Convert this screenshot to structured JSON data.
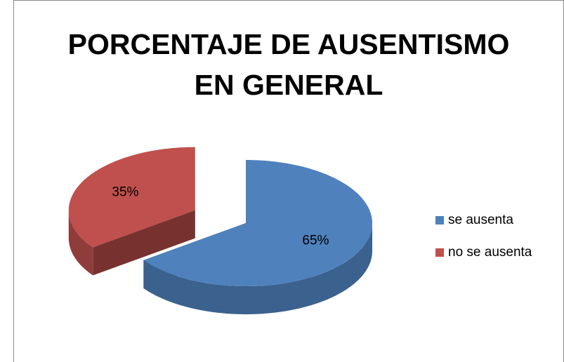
{
  "chart_data": {
    "type": "pie",
    "title": "PORCENTAJE DE AUSENTISMO EN GENERAL",
    "categories": [
      "se ausenta",
      "no se ausenta"
    ],
    "values": [
      65,
      35
    ],
    "value_labels": [
      "65%",
      "35%"
    ],
    "colors": [
      "#4f81bd",
      "#c0504d"
    ],
    "legend": "right",
    "exploded": [
      false,
      true
    ]
  }
}
